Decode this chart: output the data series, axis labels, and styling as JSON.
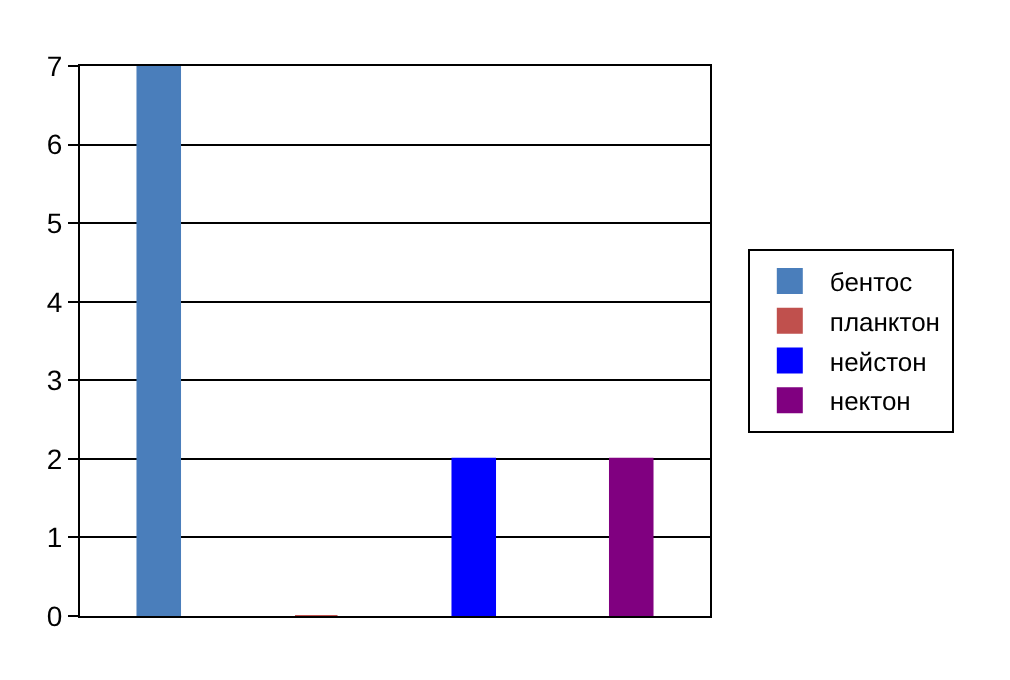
{
  "chart_data": {
    "type": "bar",
    "categories": [
      null,
      null,
      null,
      null
    ],
    "series": [
      {
        "name": "бентос",
        "color": "#4a7ebb",
        "values": [
          7,
          null,
          null,
          null
        ]
      },
      {
        "name": "планктон",
        "color": "#c0504d",
        "values": [
          null,
          0,
          null,
          null
        ]
      },
      {
        "name": "нейстон",
        "color": "#0000ff",
        "values": [
          null,
          null,
          2,
          null
        ]
      },
      {
        "name": "нектон",
        "color": "#800080",
        "values": [
          null,
          null,
          null,
          2
        ]
      }
    ],
    "ylim": [
      0,
      7
    ],
    "yticks": [
      0,
      1,
      2,
      3,
      4,
      5,
      6,
      7
    ],
    "grid": "y",
    "legend": "right"
  }
}
